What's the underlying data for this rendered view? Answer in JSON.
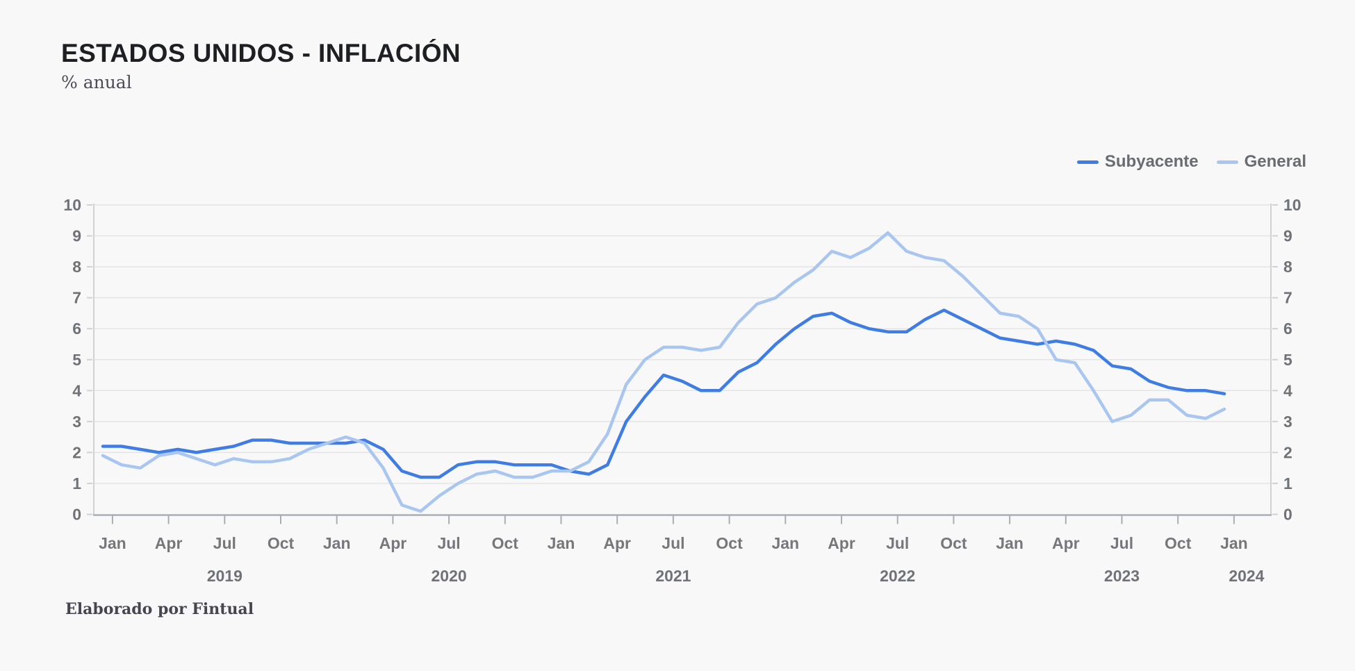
{
  "page": {
    "title": "ESTADOS UNIDOS - INFLACIÓN",
    "subtitle": "% anual",
    "footer": "Elaborado por Fintual",
    "background_color": "#f8f8f8"
  },
  "styles": {
    "grid_color": "#e4e4e5",
    "axis_side_color": "#cfd2d4",
    "axis_bottom_color": "#a8aeb4",
    "tick_label_color": "#6f7276",
    "month_label_color": "#75777b",
    "legend_text_color": "#696c70"
  },
  "chart_data": {
    "type": "line",
    "title": "ESTADOS UNIDOS - INFLACIÓN",
    "ylabel": "% anual",
    "ylim": [
      0,
      10
    ],
    "y_ticks": [
      0,
      1,
      2,
      3,
      4,
      5,
      6,
      7,
      8,
      9,
      10
    ],
    "grid": "horizontal",
    "legend_position": "top-right",
    "x_start_month": "Dec 2018",
    "x_end_month": "Dec 2023",
    "x_quarter_tick_labels": [
      "Jan",
      "Apr",
      "Jul",
      "Oct",
      "Jan",
      "Apr",
      "Jul",
      "Oct",
      "Jan",
      "Apr",
      "Jul",
      "Oct",
      "Jan",
      "Apr",
      "Jul",
      "Oct",
      "Jan",
      "Apr",
      "Jul",
      "Oct",
      "Jan"
    ],
    "x_year_labels": [
      "2019",
      "2020",
      "2021",
      "2022",
      "2023",
      "2024"
    ],
    "series": [
      {
        "name": "Subyacente",
        "color": "#3f7de4",
        "values": [
          2.2,
          2.2,
          2.1,
          2.0,
          2.1,
          2.0,
          2.1,
          2.2,
          2.4,
          2.4,
          2.3,
          2.3,
          2.3,
          2.3,
          2.4,
          2.1,
          1.4,
          1.2,
          1.2,
          1.6,
          1.7,
          1.7,
          1.6,
          1.6,
          1.6,
          1.4,
          1.3,
          1.6,
          3.0,
          3.8,
          4.5,
          4.3,
          4.0,
          4.0,
          4.6,
          4.9,
          5.5,
          6.0,
          6.4,
          6.5,
          6.2,
          6.0,
          5.9,
          5.9,
          6.3,
          6.6,
          6.3,
          6.0,
          5.7,
          5.6,
          5.5,
          5.6,
          5.5,
          5.3,
          4.8,
          4.7,
          4.3,
          4.1,
          4.0,
          4.0,
          3.9
        ]
      },
      {
        "name": "General",
        "color": "#a9c6f1",
        "values": [
          1.9,
          1.6,
          1.5,
          1.9,
          2.0,
          1.8,
          1.6,
          1.8,
          1.7,
          1.7,
          1.8,
          2.1,
          2.3,
          2.5,
          2.3,
          1.5,
          0.3,
          0.1,
          0.6,
          1.0,
          1.3,
          1.4,
          1.2,
          1.2,
          1.4,
          1.4,
          1.7,
          2.6,
          4.2,
          5.0,
          5.4,
          5.4,
          5.3,
          5.4,
          6.2,
          6.8,
          7.0,
          7.5,
          7.9,
          8.5,
          8.3,
          8.6,
          9.1,
          8.5,
          8.3,
          8.2,
          7.7,
          7.1,
          6.5,
          6.4,
          6.0,
          5.0,
          4.9,
          4.0,
          3.0,
          3.2,
          3.7,
          3.7,
          3.2,
          3.1,
          3.4
        ]
      }
    ]
  }
}
